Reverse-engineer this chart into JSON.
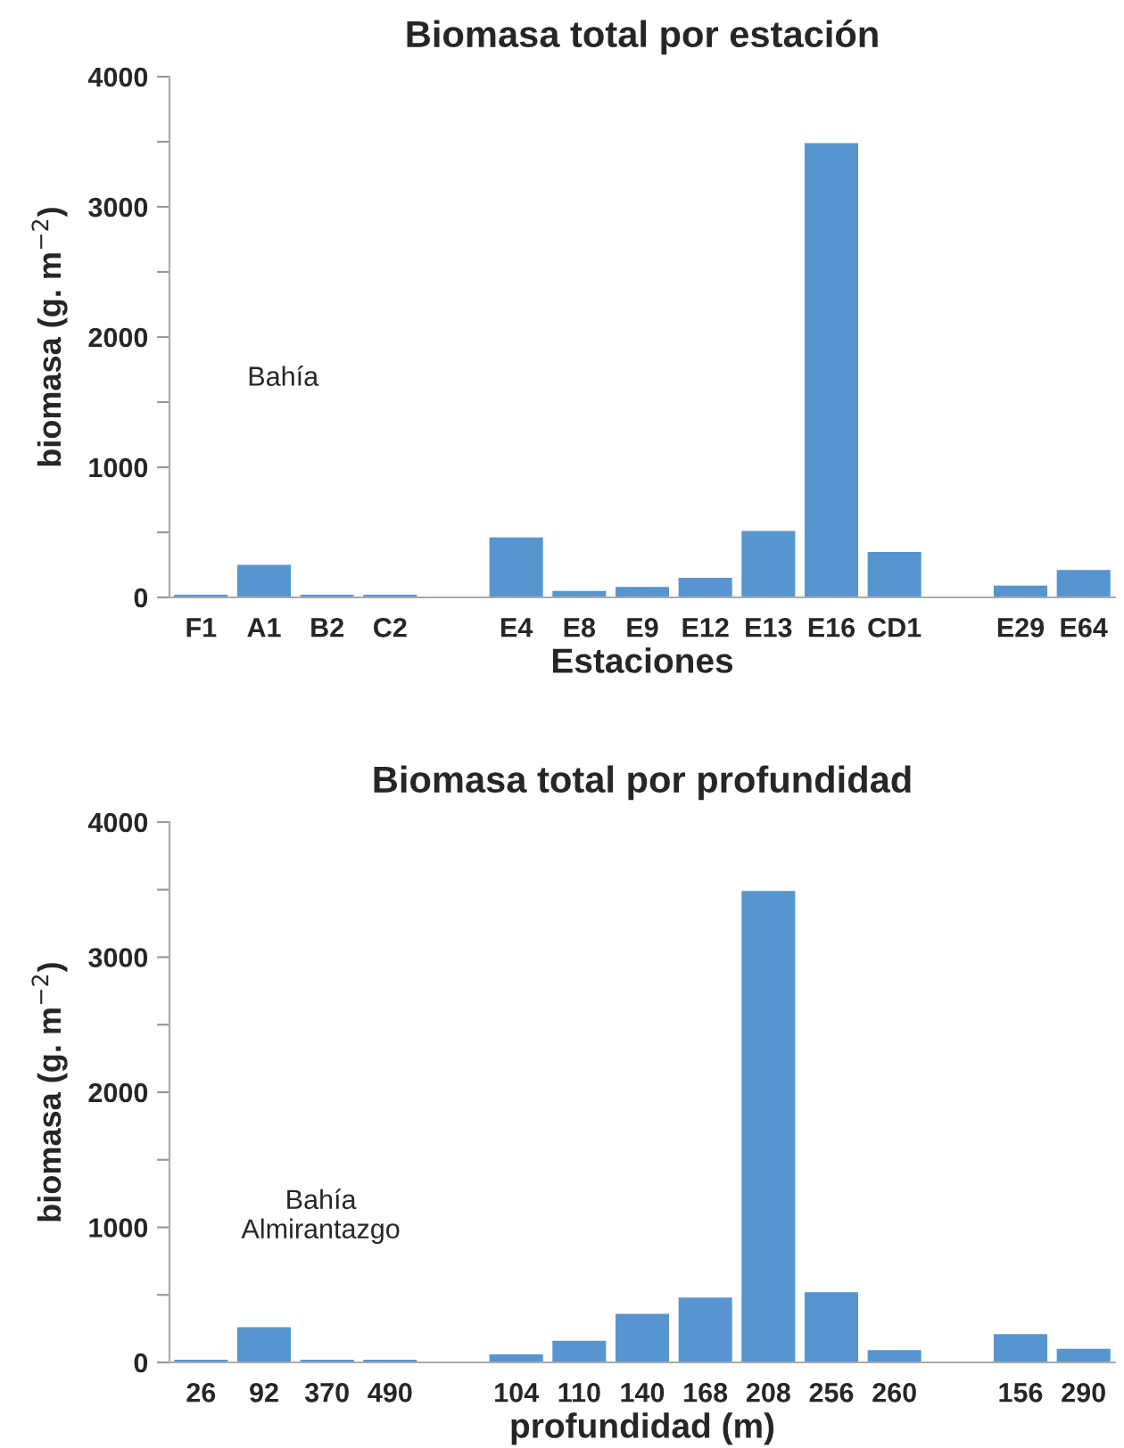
{
  "chart_data": [
    {
      "type": "bar",
      "title": "Biomasa total por estación",
      "xlabel": "Estaciones",
      "ylabel": "biomasa (g. m$^{−2}$)",
      "categories": [
        "F1",
        "A1",
        "B2",
        "C2",
        null,
        "E4",
        "E8",
        "E9",
        "E12",
        "E13",
        "E16",
        "CD1",
        null,
        "E29",
        "E64"
      ],
      "values": [
        20,
        250,
        20,
        20,
        null,
        460,
        50,
        80,
        150,
        510,
        3490,
        350,
        null,
        90,
        210
      ],
      "color": "#5795d1",
      "ylim": [
        0,
        4000
      ],
      "yticks": [
        0,
        {
          "value": 500,
          "label": null
        },
        1000,
        {
          "value": 1500,
          "label": null
        },
        2000,
        {
          "value": 2500,
          "label": null
        },
        3000,
        {
          "value": 3500,
          "label": null
        },
        4000
      ],
      "grid": false,
      "annotations": [
        "Bahía"
      ]
    },
    {
      "type": "bar",
      "title": "Biomasa total por profundidad",
      "xlabel": "profundidad (m)",
      "ylabel": "biomasa (g. m$^{−2}$)",
      "categories": [
        "26",
        "92",
        "370",
        "490",
        null,
        "104",
        "110",
        "140",
        "168",
        "208",
        "256",
        "260",
        null,
        "156",
        "290"
      ],
      "values": [
        20,
        260,
        20,
        20,
        null,
        60,
        160,
        360,
        480,
        3490,
        520,
        90,
        null,
        210,
        100
      ],
      "color": "#5795d1",
      "ylim": [
        0,
        4000
      ],
      "yticks": [
        0,
        {
          "value": 500,
          "label": null
        },
        1000,
        {
          "value": 1500,
          "label": null
        },
        2000,
        {
          "value": 2500,
          "label": null
        },
        3000,
        {
          "value": 3500,
          "label": null
        },
        4000
      ],
      "grid": false,
      "annotations": [
        "Bahía\nAlmirantazgo"
      ]
    }
  ]
}
